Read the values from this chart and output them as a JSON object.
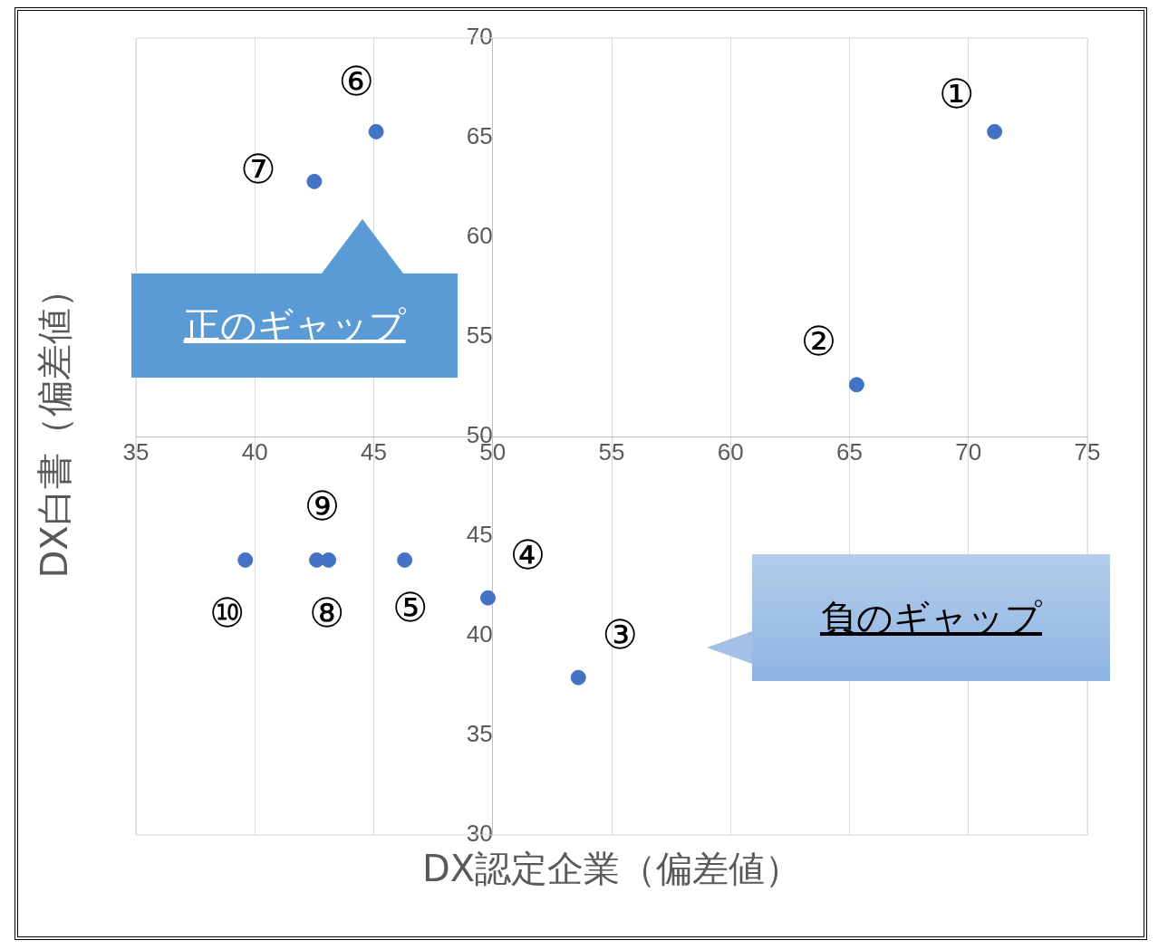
{
  "chart_data": {
    "type": "scatter",
    "xlabel": "DX認定企業（偏差値）",
    "ylabel": "DX白書（偏差値）",
    "x": [
      71.1,
      65.3,
      53.6,
      49.8,
      46.3,
      45.1,
      42.5,
      43.1,
      42.6,
      39.6
    ],
    "values": [
      65.3,
      52.6,
      37.9,
      41.9,
      43.8,
      65.3,
      62.8,
      43.8,
      43.8,
      43.8
    ],
    "color": "#4472c4",
    "marker": "circle",
    "grid": "x",
    "legend": false,
    "xlim": [
      35,
      75
    ],
    "xticks": [
      35,
      40,
      45,
      50,
      55,
      60,
      65,
      70,
      75
    ],
    "ylim": [
      30,
      70
    ],
    "yticks": [
      30,
      35,
      40,
      45,
      50,
      55,
      60,
      65,
      70
    ],
    "annotations": [
      {
        "text": "①",
        "x": 71.1,
        "y": 65.3
      },
      {
        "text": "②",
        "x": 65.3,
        "y": 52.6
      },
      {
        "text": "③",
        "x": 53.6,
        "y": 37.9
      },
      {
        "text": "④",
        "x": 49.8,
        "y": 41.9
      },
      {
        "text": "⑤",
        "x": 46.3,
        "y": 43.8
      },
      {
        "text": "⑥",
        "x": 45.1,
        "y": 65.3
      },
      {
        "text": "⑦",
        "x": 42.5,
        "y": 62.8
      },
      {
        "text": "⑧",
        "x": 43.1,
        "y": 43.8
      },
      {
        "text": "⑨",
        "x": 42.6,
        "y": 43.8
      },
      {
        "text": "⑩",
        "x": 39.6,
        "y": 43.8
      },
      "正のギャップ",
      "負のギャップ"
    ]
  }
}
